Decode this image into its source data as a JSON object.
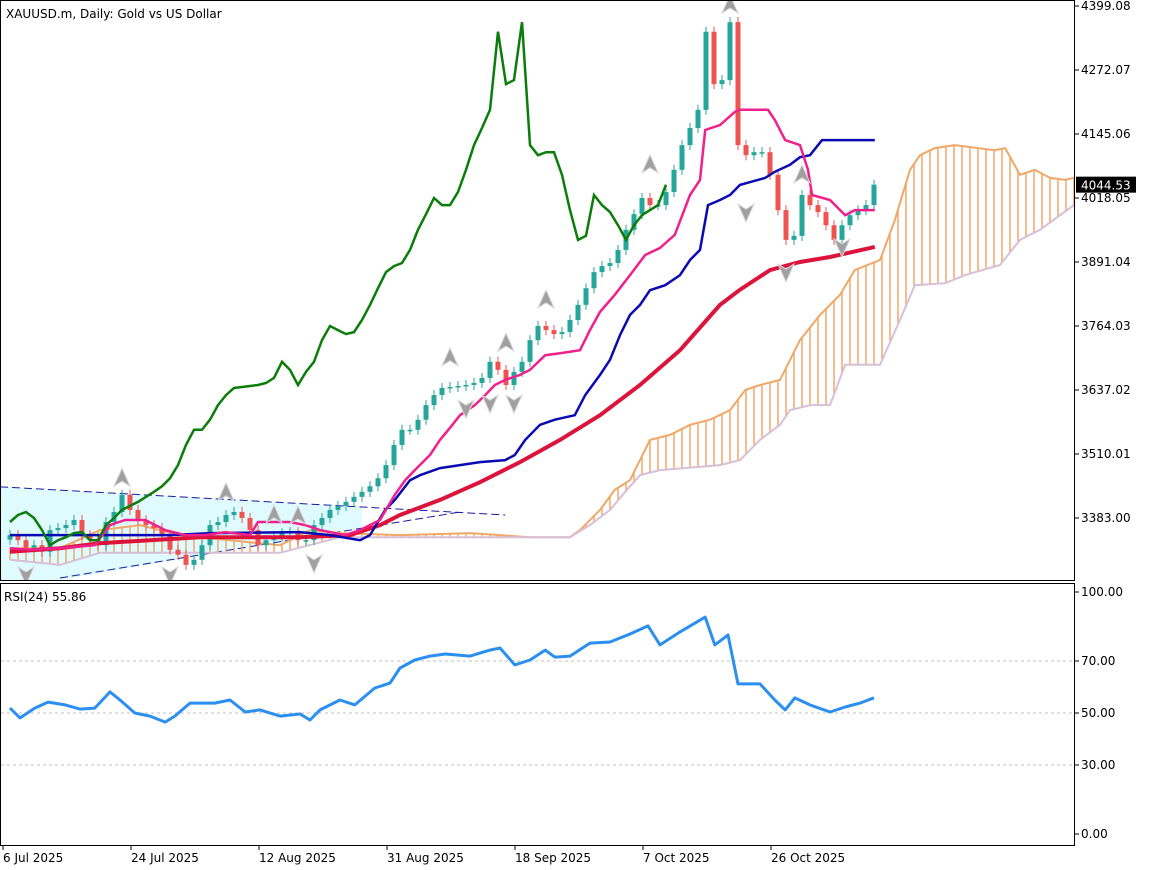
{
  "header": {
    "title": "XAUUSD.m, Daily:  Gold vs US Dollar"
  },
  "rsi_panel": {
    "label": "RSI(24) 55.86"
  },
  "colors": {
    "bull": "#26a69a",
    "bear": "#ef5350",
    "tenkan": "#f0208c",
    "kijun": "#0a0ab4",
    "chikou": "#0a7d0a",
    "ma": "#dc143c",
    "span_a": "#f0a868",
    "span_b": "#d8bfd8",
    "rsi": "#2b8ff0",
    "channel": "#1a1aa0",
    "channel_fill": "#e0fbff"
  },
  "chart_data": [
    {
      "type": "candlestick",
      "title": "XAUUSD.m, Daily:  Gold vs US Dollar",
      "ylim": [
        3270,
        4405
      ],
      "y_ticks": [
        "4399.08",
        "4272.07",
        "4145.06",
        "4018.05",
        "3891.04",
        "3764.03",
        "3637.02",
        "3510.01",
        "3383.00"
      ],
      "y_tick_values": [
        4399.08,
        4272.07,
        4145.06,
        4018.05,
        3891.04,
        3764.03,
        3637.02,
        3510.01,
        3383.0
      ],
      "current_price": "4044.53",
      "x_ticks": [
        {
          "index": -1,
          "label": "6 Jul 2025"
        },
        {
          "index": 15,
          "label": "24 Jul 2025"
        },
        {
          "index": 31,
          "label": "12 Aug 2025"
        },
        {
          "index": 47,
          "label": "31 Aug 2025"
        },
        {
          "index": 63,
          "label": "18 Sep 2025"
        },
        {
          "index": 79,
          "label": "7 Oct 2025"
        },
        {
          "index": 95,
          "label": "26 Oct 2025"
        }
      ],
      "first_open": 3340,
      "closes": [
        3349,
        3339,
        3324,
        3329,
        3316,
        3359,
        3363,
        3369,
        3379,
        3349,
        3339,
        3329,
        3375,
        3395,
        3429,
        3399,
        3379,
        3369,
        3363,
        3349,
        3320,
        3310,
        3290,
        3300,
        3329,
        3369,
        3375,
        3389,
        3395,
        3383,
        3359,
        3329,
        3339,
        3345,
        3353,
        3355,
        3339,
        3339,
        3369,
        3383,
        3399,
        3407,
        3415,
        3425,
        3435,
        3446,
        3462,
        3488,
        3528,
        3558,
        3558,
        3578,
        3607,
        3627,
        3641,
        3643,
        3645,
        3647,
        3651,
        3661,
        3693,
        3677,
        3647,
        3673,
        3693,
        3736,
        3764,
        3756,
        3748,
        3752,
        3776,
        3806,
        3839,
        3871,
        3883,
        3889,
        3915,
        3955,
        3986,
        4018,
        4004,
        4004,
        4030,
        4074,
        4123,
        4157,
        4193,
        4348,
        4244,
        4252,
        4367,
        4123,
        4103,
        4109,
        4109,
        4064,
        3994,
        3935,
        3943,
        4024,
        4004,
        3990,
        3964,
        3935,
        3964,
        3984,
        3994,
        4004,
        4044.53
      ],
      "tenkan": [
        [
          0,
          3323
        ],
        [
          2.5,
          3320
        ],
        [
          6.25,
          3323
        ],
        [
          10.6,
          3329
        ],
        [
          12.5,
          3369
        ],
        [
          14.4,
          3379
        ],
        [
          16.9,
          3379
        ],
        [
          19.4,
          3359
        ],
        [
          21.9,
          3349
        ],
        [
          24.4,
          3349
        ],
        [
          26.9,
          3355
        ],
        [
          30,
          3349
        ],
        [
          31,
          3375
        ],
        [
          35,
          3375
        ],
        [
          36.9,
          3369
        ],
        [
          38.75,
          3359
        ],
        [
          41.9,
          3349
        ],
        [
          43.75,
          3359
        ],
        [
          46.25,
          3379
        ],
        [
          48.1,
          3429
        ],
        [
          49.4,
          3458
        ],
        [
          50.6,
          3478
        ],
        [
          52.5,
          3508
        ],
        [
          53.75,
          3538
        ],
        [
          55,
          3562
        ],
        [
          56.25,
          3587
        ],
        [
          58.1,
          3607
        ],
        [
          59.4,
          3627
        ],
        [
          60.6,
          3647
        ],
        [
          61.9,
          3657
        ],
        [
          63.75,
          3667
        ],
        [
          65,
          3677
        ],
        [
          66.9,
          3706
        ],
        [
          68.75,
          3710
        ],
        [
          71.25,
          3716
        ],
        [
          72.5,
          3756
        ],
        [
          73.75,
          3792
        ],
        [
          75.6,
          3826
        ],
        [
          77.5,
          3865
        ],
        [
          79.4,
          3905
        ],
        [
          81.25,
          3919
        ],
        [
          83.1,
          3945
        ],
        [
          85,
          4024
        ],
        [
          86.25,
          4054
        ],
        [
          86.9,
          4153
        ],
        [
          88.75,
          4163
        ],
        [
          90.6,
          4189
        ],
        [
          91.25,
          4193
        ],
        [
          94.75,
          4193
        ],
        [
          95.6,
          4173
        ],
        [
          96.9,
          4133
        ],
        [
          98.75,
          4123
        ],
        [
          99.75,
          4074
        ],
        [
          100.25,
          4024
        ],
        [
          102.5,
          4014
        ],
        [
          104.4,
          3984
        ],
        [
          105.6,
          3994
        ],
        [
          108.1,
          3994
        ]
      ],
      "kijun": [
        [
          0,
          3349
        ],
        [
          20,
          3349
        ],
        [
          25,
          3353
        ],
        [
          36.25,
          3355
        ],
        [
          40,
          3349
        ],
        [
          43.75,
          3339
        ],
        [
          45,
          3349
        ],
        [
          46.9,
          3399
        ],
        [
          48.1,
          3419
        ],
        [
          50,
          3458
        ],
        [
          51.25,
          3468
        ],
        [
          53.75,
          3482
        ],
        [
          58.75,
          3494
        ],
        [
          61.9,
          3498
        ],
        [
          63.1,
          3508
        ],
        [
          64.4,
          3538
        ],
        [
          66.25,
          3568
        ],
        [
          68.1,
          3578
        ],
        [
          70.6,
          3587
        ],
        [
          71.9,
          3627
        ],
        [
          73.75,
          3667
        ],
        [
          75,
          3697
        ],
        [
          76.25,
          3746
        ],
        [
          77.5,
          3786
        ],
        [
          78.75,
          3806
        ],
        [
          80,
          3835
        ],
        [
          81.9,
          3845
        ],
        [
          83.75,
          3865
        ],
        [
          85,
          3895
        ],
        [
          86.25,
          3915
        ],
        [
          87.25,
          4004
        ],
        [
          88.75,
          4014
        ],
        [
          90,
          4024
        ],
        [
          91.25,
          4044
        ],
        [
          94.4,
          4058
        ],
        [
          95.6,
          4070
        ],
        [
          97.5,
          4084
        ],
        [
          98.75,
          4099
        ],
        [
          100,
          4103
        ],
        [
          101.5,
          4133
        ],
        [
          108.1,
          4133
        ]
      ],
      "moving_average": [
        [
          0,
          3316
        ],
        [
          6.25,
          3323
        ],
        [
          11.25,
          3333
        ],
        [
          17.5,
          3339
        ],
        [
          23.75,
          3345
        ],
        [
          36.25,
          3345
        ],
        [
          42.5,
          3349
        ],
        [
          46.25,
          3369
        ],
        [
          48.75,
          3389
        ],
        [
          53.75,
          3419
        ],
        [
          58.75,
          3454
        ],
        [
          63.75,
          3494
        ],
        [
          68.75,
          3538
        ],
        [
          73.75,
          3587
        ],
        [
          78.75,
          3647
        ],
        [
          83.75,
          3716
        ],
        [
          88.75,
          3806
        ],
        [
          91.25,
          3836
        ],
        [
          95,
          3875
        ],
        [
          98.75,
          3891
        ],
        [
          102.5,
          3901
        ],
        [
          108.1,
          3921
        ]
      ],
      "senkou_span_a": [
        [
          0,
          3323
        ],
        [
          6.25,
          3323
        ],
        [
          11.25,
          3359
        ],
        [
          16.25,
          3369
        ],
        [
          21.25,
          3349
        ],
        [
          27.5,
          3339
        ],
        [
          33.75,
          3329
        ],
        [
          37.5,
          3359
        ],
        [
          41.25,
          3353
        ],
        [
          48.75,
          3349
        ],
        [
          57.5,
          3353
        ],
        [
          65,
          3345
        ],
        [
          70,
          3345
        ],
        [
          71.25,
          3359
        ],
        [
          73.75,
          3399
        ],
        [
          75.6,
          3439
        ],
        [
          77.5,
          3458
        ],
        [
          80,
          3538
        ],
        [
          82.5,
          3548
        ],
        [
          85,
          3568
        ],
        [
          87.5,
          3578
        ],
        [
          90,
          3597
        ],
        [
          91.9,
          3637
        ],
        [
          93.75,
          3647
        ],
        [
          96.25,
          3657
        ],
        [
          98.75,
          3736
        ],
        [
          101.25,
          3786
        ],
        [
          103.75,
          3826
        ],
        [
          105.6,
          3875
        ],
        [
          108.75,
          3895
        ],
        [
          110.6,
          3974
        ],
        [
          112.5,
          4074
        ],
        [
          113.75,
          4103
        ],
        [
          115.6,
          4117
        ],
        [
          118.1,
          4123
        ],
        [
          123.1,
          4113
        ],
        [
          124.4,
          4117
        ],
        [
          126.25,
          4064
        ],
        [
          128.1,
          4074
        ],
        [
          130,
          4058
        ],
        [
          131.9,
          4054
        ],
        [
          133,
          4058
        ]
      ],
      "senkou_span_b": [
        [
          0,
          3300
        ],
        [
          6.25,
          3290
        ],
        [
          11.25,
          3314
        ],
        [
          33.75,
          3314
        ],
        [
          41.25,
          3345
        ],
        [
          70,
          3345
        ],
        [
          72.5,
          3369
        ],
        [
          75,
          3399
        ],
        [
          76.9,
          3435
        ],
        [
          78.75,
          3468
        ],
        [
          81.25,
          3478
        ],
        [
          88.75,
          3488
        ],
        [
          91.25,
          3498
        ],
        [
          93.75,
          3538
        ],
        [
          96.25,
          3568
        ],
        [
          97.5,
          3597
        ],
        [
          100,
          3607
        ],
        [
          102.5,
          3607
        ],
        [
          104.4,
          3687
        ],
        [
          108.75,
          3687
        ],
        [
          111.25,
          3776
        ],
        [
          113.1,
          3845
        ],
        [
          116.9,
          3849
        ],
        [
          119.4,
          3865
        ],
        [
          123.75,
          3885
        ],
        [
          126.25,
          3935
        ],
        [
          128.75,
          3955
        ],
        [
          131.25,
          3984
        ],
        [
          133,
          4004
        ]
      ],
      "channel_upper": [
        [
          -1.25,
          3445
        ],
        [
          61.9,
          3389
        ]
      ],
      "channel_lower": [
        [
          6.25,
          3264
        ],
        [
          56.25,
          3395
        ]
      ],
      "fractals": [
        [
          14,
          3462,
          "up"
        ],
        [
          27,
          3433,
          "up"
        ],
        [
          33,
          3389,
          "up"
        ],
        [
          36,
          3387,
          "up"
        ],
        [
          55,
          3701,
          "up"
        ],
        [
          62,
          3730,
          "up"
        ],
        [
          67,
          3816,
          "up"
        ],
        [
          80,
          4084,
          "up"
        ],
        [
          90,
          4401,
          "up"
        ],
        [
          99,
          4064,
          "up"
        ],
        [
          2,
          3270,
          "down"
        ],
        [
          20,
          3270,
          "down"
        ],
        [
          38,
          3294,
          "down"
        ],
        [
          57,
          3601,
          "down"
        ],
        [
          60,
          3611,
          "down"
        ],
        [
          63,
          3611,
          "down"
        ],
        [
          92,
          3990,
          "down"
        ],
        [
          97,
          3871,
          "down"
        ],
        [
          104,
          3921,
          "down"
        ]
      ]
    },
    {
      "type": "line",
      "title": "RSI(24) 55.86",
      "ylim": [
        0,
        100
      ],
      "y_ticks": [
        "100.00",
        "70.00",
        "50.00",
        "30.00",
        "0.00"
      ],
      "y_tick_values": [
        100,
        70,
        50,
        30,
        0
      ],
      "levels": [
        70,
        50,
        30
      ],
      "points": [
        [
          0,
          51.9
        ],
        [
          1.25,
          48.1
        ],
        [
          3.1,
          51.9
        ],
        [
          4.75,
          54.2
        ],
        [
          6.9,
          53.1
        ],
        [
          8.75,
          51.5
        ],
        [
          10.6,
          51.9
        ],
        [
          12.5,
          58.1
        ],
        [
          13.75,
          55
        ],
        [
          15.6,
          50
        ],
        [
          17.5,
          48.8
        ],
        [
          19.4,
          46.5
        ],
        [
          20.6,
          48.8
        ],
        [
          22.5,
          53.8
        ],
        [
          25.6,
          53.8
        ],
        [
          27.5,
          55
        ],
        [
          29.4,
          50.4
        ],
        [
          31.25,
          51.2
        ],
        [
          33.75,
          48.8
        ],
        [
          36.25,
          49.6
        ],
        [
          37.5,
          47.3
        ],
        [
          38.75,
          51.2
        ],
        [
          41.25,
          55
        ],
        [
          43.1,
          53.1
        ],
        [
          45.6,
          59.6
        ],
        [
          47.5,
          61.5
        ],
        [
          48.75,
          67.3
        ],
        [
          50.6,
          70.4
        ],
        [
          52.5,
          71.9
        ],
        [
          54.4,
          72.7
        ],
        [
          57.5,
          71.9
        ],
        [
          60,
          74.2
        ],
        [
          61.25,
          75
        ],
        [
          63.1,
          68.5
        ],
        [
          65,
          70.4
        ],
        [
          66.9,
          74.2
        ],
        [
          68.1,
          71.5
        ],
        [
          70,
          71.9
        ],
        [
          72.5,
          76.9
        ],
        [
          75,
          77.3
        ],
        [
          77.5,
          80.4
        ],
        [
          79.75,
          83.5
        ],
        [
          81.25,
          76.2
        ],
        [
          83.75,
          81.2
        ],
        [
          86.9,
          86.9
        ],
        [
          88.1,
          76.2
        ],
        [
          89.75,
          80
        ],
        [
          91,
          61.2
        ],
        [
          93.75,
          61.2
        ],
        [
          95.6,
          55
        ],
        [
          96.9,
          51.2
        ],
        [
          98.1,
          55.8
        ],
        [
          100,
          53.1
        ],
        [
          102.5,
          50.4
        ],
        [
          104.4,
          52.3
        ],
        [
          106.25,
          53.8
        ],
        [
          108,
          55.86
        ]
      ]
    }
  ]
}
